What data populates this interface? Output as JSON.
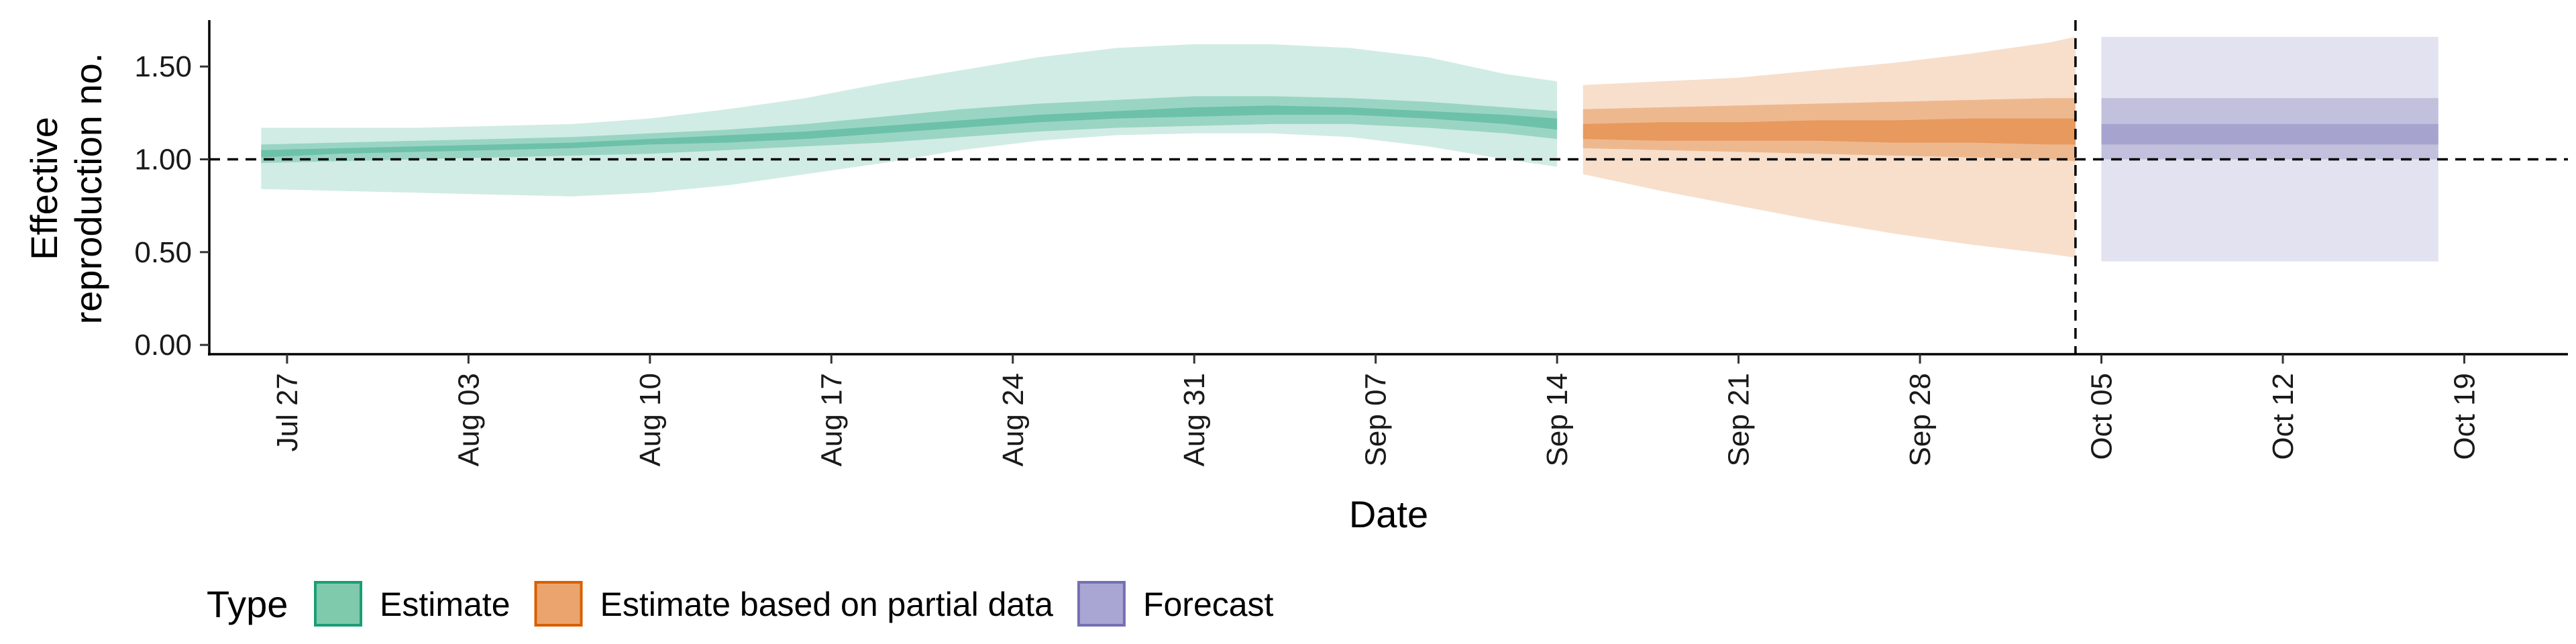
{
  "chart_data": {
    "type": "area",
    "xlabel": "Date",
    "ylabel_lines": [
      "Effective",
      "reproduction no."
    ],
    "ylim": [
      -0.05,
      1.75
    ],
    "xlim": [
      "2020-07-24",
      "2020-10-23"
    ],
    "yticks": [
      0.0,
      0.5,
      1.0,
      1.5
    ],
    "ytick_labels": [
      "0.00",
      "0.50",
      "1.00",
      "1.50"
    ],
    "xticks": [
      "2020-07-27",
      "2020-08-03",
      "2020-08-10",
      "2020-08-17",
      "2020-08-24",
      "2020-08-31",
      "2020-09-07",
      "2020-09-14",
      "2020-09-21",
      "2020-09-28",
      "2020-10-05",
      "2020-10-12",
      "2020-10-19"
    ],
    "xtick_labels": [
      "Jul 27",
      "Aug 03",
      "Aug 10",
      "Aug 17",
      "Aug 24",
      "Aug 31",
      "Sep 07",
      "Sep 14",
      "Sep 21",
      "Sep 28",
      "Oct 05",
      "Oct 12",
      "Oct 19"
    ],
    "reference_hline": 1.0,
    "reference_vline": "2020-10-04",
    "grid": false,
    "legend": {
      "title": "Type",
      "position": "bottom-left",
      "items": [
        {
          "label": "Estimate",
          "fill": "#7fc9ad",
          "stroke": "#1b9e77"
        },
        {
          "label": "Estimate based on partial data",
          "fill": "#eba46d",
          "stroke": "#d95f02"
        },
        {
          "label": "Forecast",
          "fill": "#a9a6d3",
          "stroke": "#7570b3"
        }
      ]
    },
    "series": [
      {
        "name": "Estimate",
        "color": "#1b9e77",
        "x": [
          "2020-07-26",
          "2020-07-29",
          "2020-08-01",
          "2020-08-04",
          "2020-08-07",
          "2020-08-10",
          "2020-08-13",
          "2020-08-16",
          "2020-08-19",
          "2020-08-22",
          "2020-08-25",
          "2020-08-28",
          "2020-08-31",
          "2020-09-03",
          "2020-09-06",
          "2020-09-09",
          "2020-09-12",
          "2020-09-14"
        ],
        "lower_90": [
          0.84,
          0.83,
          0.82,
          0.81,
          0.8,
          0.82,
          0.86,
          0.92,
          0.98,
          1.05,
          1.1,
          1.13,
          1.14,
          1.14,
          1.12,
          1.07,
          1.0,
          0.96
        ],
        "upper_90": [
          1.17,
          1.17,
          1.17,
          1.18,
          1.19,
          1.22,
          1.27,
          1.33,
          1.41,
          1.48,
          1.55,
          1.6,
          1.62,
          1.62,
          1.6,
          1.55,
          1.46,
          1.42
        ],
        "lower_50": [
          0.98,
          0.99,
          1.0,
          1.01,
          1.02,
          1.03,
          1.05,
          1.07,
          1.09,
          1.12,
          1.15,
          1.17,
          1.18,
          1.19,
          1.19,
          1.17,
          1.14,
          1.11
        ],
        "upper_50": [
          1.08,
          1.09,
          1.1,
          1.11,
          1.12,
          1.14,
          1.16,
          1.19,
          1.23,
          1.27,
          1.3,
          1.32,
          1.34,
          1.34,
          1.33,
          1.31,
          1.28,
          1.26
        ],
        "lower_20": [
          1.01,
          1.03,
          1.04,
          1.05,
          1.06,
          1.08,
          1.09,
          1.11,
          1.14,
          1.17,
          1.2,
          1.22,
          1.23,
          1.24,
          1.24,
          1.22,
          1.19,
          1.16
        ],
        "upper_20": [
          1.05,
          1.06,
          1.07,
          1.08,
          1.09,
          1.11,
          1.13,
          1.15,
          1.18,
          1.21,
          1.24,
          1.26,
          1.28,
          1.29,
          1.28,
          1.26,
          1.24,
          1.22
        ]
      },
      {
        "name": "Estimate based on partial data",
        "color": "#d95f02",
        "x": [
          "2020-09-15",
          "2020-09-18",
          "2020-09-21",
          "2020-09-24",
          "2020-09-27",
          "2020-09-30",
          "2020-10-03",
          "2020-10-04"
        ],
        "lower_90": [
          0.92,
          0.83,
          0.75,
          0.67,
          0.6,
          0.54,
          0.49,
          0.47
        ],
        "upper_90": [
          1.4,
          1.42,
          1.44,
          1.48,
          1.52,
          1.57,
          1.63,
          1.66
        ],
        "lower_50": [
          1.06,
          1.05,
          1.04,
          1.03,
          1.02,
          1.01,
          1.0,
          0.99
        ],
        "upper_50": [
          1.27,
          1.28,
          1.29,
          1.3,
          1.31,
          1.32,
          1.33,
          1.33
        ],
        "lower_20": [
          1.11,
          1.1,
          1.1,
          1.1,
          1.09,
          1.09,
          1.08,
          1.08
        ],
        "upper_20": [
          1.19,
          1.2,
          1.2,
          1.21,
          1.21,
          1.22,
          1.22,
          1.22
        ]
      },
      {
        "name": "Forecast",
        "color": "#7570b3",
        "x": [
          "2020-10-05",
          "2020-10-18"
        ],
        "lower_90": [
          0.45,
          0.45
        ],
        "upper_90": [
          1.66,
          1.66
        ],
        "lower_50": [
          1.0,
          1.0
        ],
        "upper_50": [
          1.33,
          1.33
        ],
        "lower_20": [
          1.08,
          1.08
        ],
        "upper_20": [
          1.19,
          1.19
        ]
      }
    ]
  }
}
